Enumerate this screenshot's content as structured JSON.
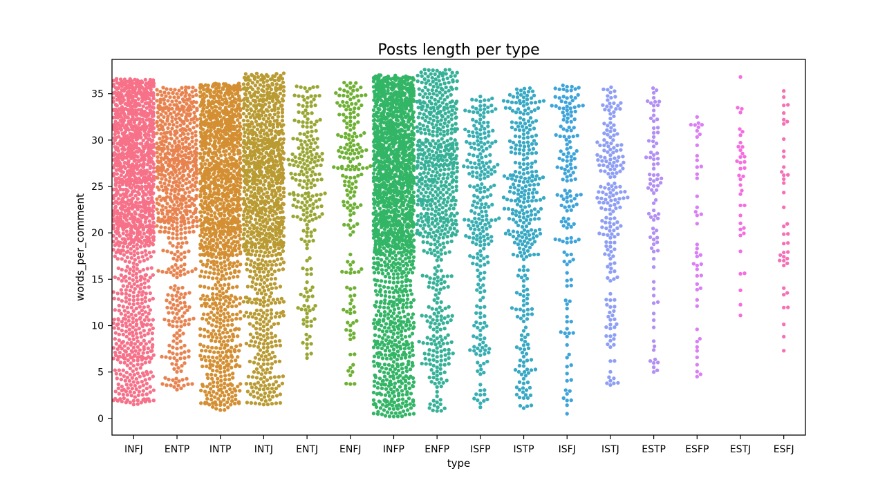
{
  "chart_data": {
    "type": "scatter",
    "subtype": "swarm",
    "title": "Posts length per type",
    "xlabel": "type",
    "ylabel": "words_per_comment",
    "ylim": [
      -1.8,
      38.7
    ],
    "yticks": [
      0,
      5,
      10,
      15,
      20,
      25,
      30,
      35
    ],
    "grid": false,
    "legend": "none",
    "categories": [
      "INFJ",
      "ENTP",
      "INTP",
      "INTJ",
      "ENTJ",
      "ENFJ",
      "INFP",
      "ENFP",
      "ISFP",
      "ISTP",
      "ISFJ",
      "ISTJ",
      "ESTP",
      "ESFP",
      "ESTJ",
      "ESFJ"
    ],
    "colors": [
      "#f77189",
      "#e8834f",
      "#d48f32",
      "#b99b32",
      "#9aa632",
      "#6eb032",
      "#33b566",
      "#35b198",
      "#36aeb2",
      "#38a9c5",
      "#3da4da",
      "#8e9ef5",
      "#b38ff5",
      "#db7ef5",
      "#f56de0",
      "#f670b7"
    ],
    "series": [
      {
        "name": "INFJ",
        "count": 1470,
        "min": 1.5,
        "max": 36.6,
        "q1": 19.0,
        "median": 25.5,
        "q3": 31.0
      },
      {
        "name": "ENTP",
        "count": 685,
        "min": 3.1,
        "max": 35.7,
        "q1": 20.0,
        "median": 25.5,
        "q3": 30.0
      },
      {
        "name": "INTP",
        "count": 1304,
        "min": 0.9,
        "max": 36.1,
        "q1": 17.5,
        "median": 24.0,
        "q3": 30.0
      },
      {
        "name": "INTJ",
        "count": 1091,
        "min": 1.5,
        "max": 37.2,
        "q1": 17.5,
        "median": 24.5,
        "q3": 30.0
      },
      {
        "name": "ENTJ",
        "count": 231,
        "min": 6.5,
        "max": 35.8,
        "q1": 21.0,
        "median": 26.0,
        "q3": 30.0
      },
      {
        "name": "ENFJ",
        "count": 190,
        "min": 3.7,
        "max": 36.2,
        "q1": 22.0,
        "median": 27.0,
        "q3": 31.0
      },
      {
        "name": "INFP",
        "count": 1832,
        "min": 0.2,
        "max": 37.0,
        "q1": 18.0,
        "median": 25.0,
        "q3": 30.5
      },
      {
        "name": "ENFP",
        "count": 675,
        "min": 0.8,
        "max": 37.6,
        "q1": 19.5,
        "median": 25.5,
        "q3": 30.0
      },
      {
        "name": "ISFP",
        "count": 271,
        "min": 1.2,
        "max": 34.7,
        "q1": 17.0,
        "median": 23.0,
        "q3": 28.5
      },
      {
        "name": "ISTP",
        "count": 337,
        "min": 1.1,
        "max": 35.6,
        "q1": 17.5,
        "median": 23.5,
        "q3": 29.0
      },
      {
        "name": "ISFJ",
        "count": 166,
        "min": 0.5,
        "max": 35.9,
        "q1": 19.0,
        "median": 26.0,
        "q3": 30.5
      },
      {
        "name": "ISTJ",
        "count": 205,
        "min": 3.6,
        "max": 35.7,
        "q1": 19.0,
        "median": 25.0,
        "q3": 29.5
      },
      {
        "name": "ESTP",
        "count": 89,
        "min": 5.0,
        "max": 35.6,
        "q1": 18.0,
        "median": 24.5,
        "q3": 28.5
      },
      {
        "name": "ESFP",
        "count": 48,
        "min": 4.5,
        "max": 32.5,
        "q1": 13.5,
        "median": 21.0,
        "q3": 27.5
      },
      {
        "name": "ESTJ",
        "count": 39,
        "min": 11.1,
        "max": 36.8,
        "q1": 20.0,
        "median": 25.5,
        "q3": 29.0
      },
      {
        "name": "ESFJ",
        "count": 42,
        "min": 7.3,
        "max": 35.3,
        "q1": 18.5,
        "median": 25.5,
        "q3": 31.0
      }
    ]
  }
}
